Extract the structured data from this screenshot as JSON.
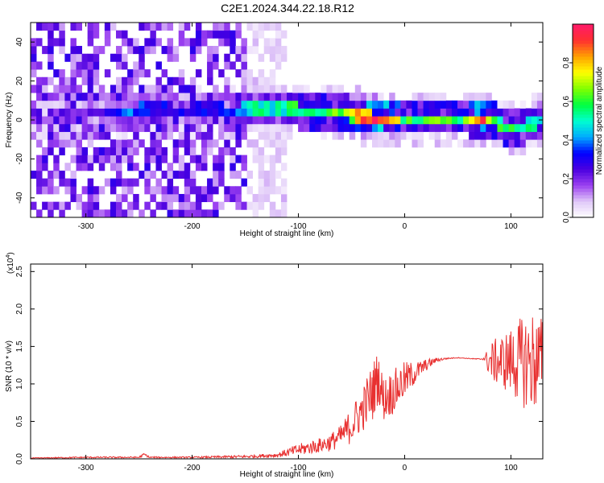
{
  "title": "C2E1.2024.344.22.18.R12",
  "chart_data": [
    {
      "type": "heatmap",
      "xlabel": "Height of straight line (km)",
      "ylabel": "Frequency (Hz)",
      "xlim": [
        -352,
        130
      ],
      "ylim": [
        -50,
        50
      ],
      "xticks": [
        -300,
        -200,
        -100,
        0,
        100
      ],
      "yticks": [
        -40,
        -20,
        0,
        20,
        40
      ],
      "colorbar": {
        "label": "Normalized spectral amplitude",
        "range": [
          0,
          1
        ],
        "ticks": [
          0.0,
          0.2,
          0.4,
          0.6,
          0.8
        ],
        "colors": [
          "#ffffff",
          "#e0c8f8",
          "#9b40f0",
          "#4a00e0",
          "#0000ff",
          "#00aaff",
          "#00ffd0",
          "#00ff40",
          "#80ff00",
          "#ffff00",
          "#ffa000",
          "#ff3030",
          "#ff1a6a"
        ]
      },
      "ridge": {
        "x": [
          -320,
          -300,
          -280,
          -260,
          -240,
          -220,
          -200,
          -180,
          -160,
          -140,
          -120,
          -100,
          -80,
          -60,
          -40,
          -30,
          -20,
          0,
          20,
          40,
          60,
          70,
          80,
          90,
          100,
          110,
          120,
          130
        ],
        "center_hz": [
          0,
          3,
          4,
          4,
          6,
          5,
          5,
          6,
          4,
          7,
          6,
          5,
          4,
          4,
          2,
          1,
          1,
          1,
          1,
          1,
          1,
          0,
          0,
          -2,
          -4,
          -4,
          -2,
          0
        ],
        "amplitude": [
          0.15,
          0.2,
          0.3,
          0.4,
          0.3,
          0.3,
          0.3,
          0.3,
          0.35,
          0.5,
          0.5,
          0.55,
          0.6,
          0.6,
          0.8,
          0.9,
          0.95,
          0.6,
          0.6,
          0.6,
          0.6,
          0.9,
          0.7,
          0.55,
          0.6,
          0.5,
          0.5,
          0.5
        ]
      }
    },
    {
      "type": "line",
      "xlabel": "Height of straight line (km)",
      "ylabel": "SNR (10 * v/v)",
      "scale_label": "(x10",
      "scale_exponent": "4",
      "xlim": [
        -352,
        130
      ],
      "ylim": [
        0,
        2.6
      ],
      "xticks": [
        -300,
        -200,
        -100,
        0,
        100
      ],
      "yticks": [
        0.0,
        0.5,
        1.0,
        1.5,
        2.0,
        2.5
      ],
      "color": "#e83030",
      "series": [
        {
          "x": [
            -352,
            -300,
            -250,
            -245,
            -240,
            -200,
            -150,
            -120,
            -100,
            -80,
            -70,
            -60,
            -50,
            -40,
            -30,
            -25,
            -20,
            -10,
            0,
            10,
            20,
            30,
            40,
            50,
            60,
            70,
            75,
            80,
            90,
            100,
            110,
            120,
            130
          ],
          "y": [
            0.01,
            0.02,
            0.02,
            0.06,
            0.02,
            0.02,
            0.03,
            0.05,
            0.12,
            0.18,
            0.22,
            0.3,
            0.45,
            0.65,
            0.9,
            1.1,
            0.8,
            0.9,
            1.05,
            1.15,
            1.25,
            1.32,
            1.34,
            1.35,
            1.34,
            1.33,
            1.34,
            1.3,
            1.3,
            1.3,
            1.3,
            1.3,
            1.3
          ],
          "spread": [
            0.005,
            0.01,
            0.01,
            0.02,
            0.01,
            0.01,
            0.02,
            0.03,
            0.08,
            0.1,
            0.12,
            0.15,
            0.25,
            0.3,
            0.4,
            0.35,
            0.3,
            0.3,
            0.25,
            0.15,
            0.08,
            0.03,
            0.01,
            0.005,
            0.005,
            0.01,
            0.02,
            0.25,
            0.35,
            0.45,
            0.6,
            0.7,
            0.6
          ]
        }
      ]
    }
  ]
}
